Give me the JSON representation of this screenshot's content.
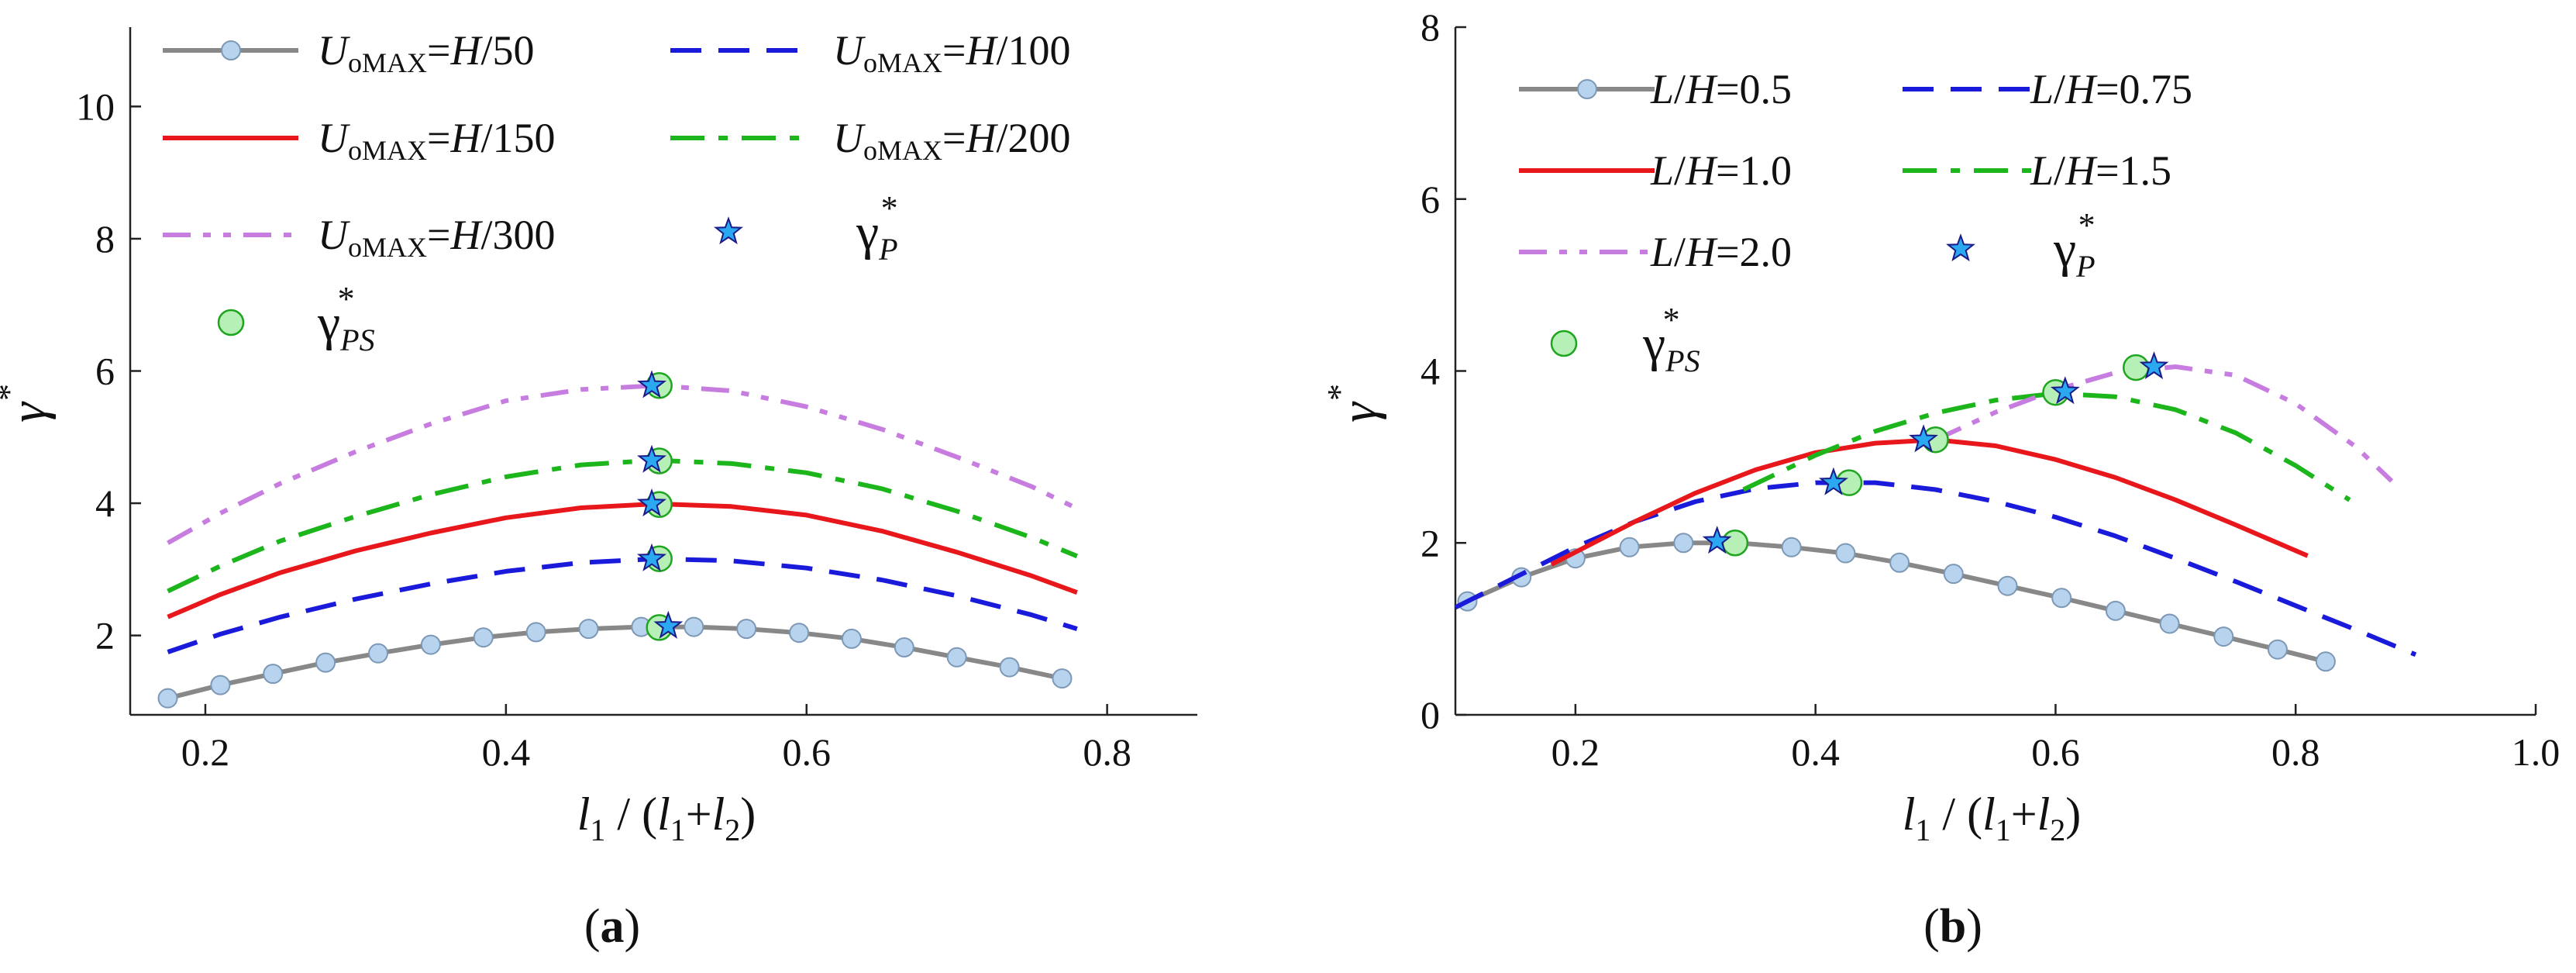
{
  "chart_data": [
    {
      "id": "a",
      "type": "line",
      "panel_label": "(a)",
      "panel_label_parts": [
        "(",
        "a",
        ")"
      ],
      "xlabel": "l1/(l1+l2)",
      "xlabel_parts": [
        "l",
        "1",
        " / (",
        "l",
        "1",
        "+",
        "l",
        "2",
        ")"
      ],
      "ylabel": "γ*",
      "ylabel_parts": [
        "γ",
        "*"
      ],
      "xlim": [
        0.15,
        0.86
      ],
      "ylim": [
        0.8,
        11.2
      ],
      "xticks": [
        0.2,
        0.4,
        0.6,
        0.8
      ],
      "xtick_labels": [
        "0.2",
        "0.4",
        "0.6",
        "0.8"
      ],
      "yticks": [
        2,
        4,
        6,
        8,
        10
      ],
      "ytick_labels": [
        "2",
        "4",
        "6",
        "8",
        "10"
      ],
      "grid": false,
      "legend_position": "top",
      "series": [
        {
          "name": "UoMAX=H/50",
          "legend_parts": [
            "U",
            "oMAX",
            "=",
            "H",
            "/50"
          ],
          "color": "#888888",
          "style": "solid-markers",
          "x": [
            0.175,
            0.21,
            0.245,
            0.28,
            0.315,
            0.35,
            0.385,
            0.42,
            0.455,
            0.49,
            0.525,
            0.56,
            0.595,
            0.63,
            0.665,
            0.7,
            0.735,
            0.77
          ],
          "y": [
            1.05,
            1.25,
            1.42,
            1.59,
            1.73,
            1.86,
            1.97,
            2.05,
            2.1,
            2.13,
            2.13,
            2.1,
            2.04,
            1.95,
            1.82,
            1.67,
            1.52,
            1.35
          ]
        },
        {
          "name": "UoMAX=H/100",
          "legend_parts": [
            "U",
            "oMAX",
            "=",
            "H",
            "/100"
          ],
          "color": "#1a1adb",
          "style": "dashed",
          "x": [
            0.175,
            0.21,
            0.25,
            0.3,
            0.35,
            0.4,
            0.45,
            0.5,
            0.55,
            0.6,
            0.65,
            0.7,
            0.75,
            0.78
          ],
          "y": [
            1.75,
            2.02,
            2.28,
            2.55,
            2.78,
            2.97,
            3.1,
            3.16,
            3.13,
            3.02,
            2.84,
            2.6,
            2.31,
            2.1
          ]
        },
        {
          "name": "UoMAX=H/150",
          "legend_parts": [
            "U",
            "oMAX",
            "=",
            "H",
            "/150"
          ],
          "color": "#e8171c",
          "style": "solid",
          "x": [
            0.175,
            0.21,
            0.25,
            0.3,
            0.35,
            0.4,
            0.45,
            0.5,
            0.55,
            0.6,
            0.65,
            0.7,
            0.75,
            0.78
          ],
          "y": [
            2.28,
            2.62,
            2.95,
            3.28,
            3.55,
            3.78,
            3.93,
            3.99,
            3.95,
            3.82,
            3.58,
            3.26,
            2.9,
            2.65
          ]
        },
        {
          "name": "UoMAX=H/200",
          "legend_parts": [
            "U",
            "oMAX",
            "=",
            "H",
            "/200"
          ],
          "color": "#1cb51c",
          "style": "dashdot",
          "x": [
            0.175,
            0.21,
            0.25,
            0.3,
            0.35,
            0.4,
            0.45,
            0.5,
            0.55,
            0.6,
            0.65,
            0.7,
            0.75,
            0.78
          ],
          "y": [
            2.67,
            3.05,
            3.43,
            3.8,
            4.13,
            4.4,
            4.58,
            4.65,
            4.6,
            4.46,
            4.22,
            3.88,
            3.48,
            3.2
          ]
        },
        {
          "name": "UoMAX=H/300",
          "legend_parts": [
            "U",
            "oMAX",
            "=",
            "H",
            "/300"
          ],
          "color": "#c77de0",
          "style": "dashdotdot",
          "x": [
            0.175,
            0.21,
            0.25,
            0.3,
            0.35,
            0.4,
            0.45,
            0.5,
            0.55,
            0.6,
            0.65,
            0.7,
            0.75,
            0.78
          ],
          "y": [
            3.4,
            3.85,
            4.3,
            4.78,
            5.2,
            5.55,
            5.72,
            5.78,
            5.7,
            5.46,
            5.12,
            4.7,
            4.25,
            3.92
          ]
        }
      ],
      "markers": [
        {
          "name": "γP*",
          "legend_parts": [
            "γ",
            "P",
            "*"
          ],
          "shape": "star",
          "color": "#2aa8f0",
          "x": [
            0.508,
            0.497,
            0.497,
            0.497,
            0.497
          ],
          "y": [
            2.14,
            3.16,
            3.99,
            4.65,
            5.78
          ]
        },
        {
          "name": "γPS*",
          "legend_parts": [
            "γ",
            "PS",
            "*"
          ],
          "shape": "circle",
          "color": "#b6f0b6",
          "x": [
            0.502,
            0.502,
            0.502,
            0.502,
            0.502
          ],
          "y": [
            2.12,
            3.16,
            3.98,
            4.64,
            5.78
          ]
        }
      ]
    },
    {
      "id": "b",
      "type": "line",
      "panel_label": "(b)",
      "panel_label_parts": [
        "(",
        "b",
        ")"
      ],
      "xlabel": "l1/(l1+l2)",
      "xlabel_parts": [
        "l",
        "1",
        " / (",
        "l",
        "1",
        "+",
        "l",
        "2",
        ")"
      ],
      "ylabel": "γ*",
      "ylabel_parts": [
        "γ",
        "*"
      ],
      "xlim": [
        0.1,
        1.0
      ],
      "ylim": [
        0,
        8
      ],
      "xticks": [
        0.2,
        0.4,
        0.6,
        0.8,
        1.0
      ],
      "xtick_labels": [
        "0.2",
        "0.4",
        "0.6",
        "0.8",
        "1.0"
      ],
      "yticks": [
        0,
        2,
        4,
        6,
        8
      ],
      "ytick_labels": [
        "0",
        "2",
        "4",
        "6",
        "8"
      ],
      "grid": false,
      "legend_position": "top",
      "series": [
        {
          "name": "L/H=0.5",
          "legend_parts": [
            "L",
            "/",
            "H",
            "=0.5"
          ],
          "color": "#888888",
          "style": "solid-markers",
          "x": [
            0.11,
            0.155,
            0.2,
            0.245,
            0.29,
            0.335,
            0.38,
            0.425,
            0.47,
            0.515,
            0.56,
            0.605,
            0.65,
            0.695,
            0.74,
            0.785,
            0.825
          ],
          "y": [
            1.32,
            1.6,
            1.82,
            1.95,
            2.0,
            2.0,
            1.95,
            1.88,
            1.77,
            1.64,
            1.5,
            1.36,
            1.21,
            1.06,
            0.91,
            0.76,
            0.62
          ]
        },
        {
          "name": "L/H=0.75",
          "legend_parts": [
            "L",
            "/",
            "H",
            "=0.75"
          ],
          "color": "#1a1adb",
          "style": "dashed",
          "x": [
            0.1,
            0.15,
            0.2,
            0.25,
            0.3,
            0.35,
            0.4,
            0.45,
            0.5,
            0.55,
            0.6,
            0.65,
            0.7,
            0.75,
            0.8,
            0.85,
            0.9
          ],
          "y": [
            1.25,
            1.6,
            1.95,
            2.25,
            2.48,
            2.63,
            2.7,
            2.7,
            2.62,
            2.48,
            2.3,
            2.08,
            1.82,
            1.55,
            1.27,
            0.99,
            0.7
          ]
        },
        {
          "name": "L/H=1.0",
          "legend_parts": [
            "L",
            "/",
            "H",
            "=1.0"
          ],
          "color": "#e8171c",
          "style": "solid",
          "x": [
            0.18,
            0.25,
            0.3,
            0.35,
            0.4,
            0.45,
            0.5,
            0.55,
            0.6,
            0.65,
            0.7,
            0.75,
            0.81
          ],
          "y": [
            1.75,
            2.25,
            2.58,
            2.85,
            3.05,
            3.16,
            3.2,
            3.13,
            2.97,
            2.76,
            2.5,
            2.21,
            1.85
          ]
        },
        {
          "name": "L/H=1.5",
          "legend_parts": [
            "L",
            "/",
            "H",
            "=1.5"
          ],
          "color": "#1cb51c",
          "style": "dashdot",
          "x": [
            0.34,
            0.4,
            0.45,
            0.5,
            0.55,
            0.6,
            0.65,
            0.7,
            0.75,
            0.8,
            0.845
          ],
          "y": [
            2.62,
            3.02,
            3.3,
            3.51,
            3.66,
            3.74,
            3.7,
            3.55,
            3.28,
            2.9,
            2.5
          ]
        },
        {
          "name": "L/H=2.0",
          "legend_parts": [
            "L",
            "/",
            "H",
            "=2.0"
          ],
          "color": "#c77de0",
          "style": "dashdotdot",
          "x": [
            0.5,
            0.55,
            0.6,
            0.65,
            0.7,
            0.75,
            0.8,
            0.85,
            0.88
          ],
          "y": [
            3.2,
            3.52,
            3.78,
            3.98,
            4.05,
            3.95,
            3.62,
            3.12,
            2.72
          ]
        }
      ],
      "markers": [
        {
          "name": "γP*",
          "legend_parts": [
            "γ",
            "P",
            "*"
          ],
          "shape": "star",
          "color": "#2aa8f0",
          "x": [
            0.318,
            0.415,
            0.49,
            0.608,
            0.682
          ],
          "y": [
            2.02,
            2.7,
            3.2,
            3.76,
            4.05
          ]
        },
        {
          "name": "γPS*",
          "legend_parts": [
            "γ",
            "PS",
            "*"
          ],
          "shape": "circle",
          "color": "#b6f0b6",
          "x": [
            0.333,
            0.428,
            0.5,
            0.6,
            0.667
          ],
          "y": [
            2.0,
            2.7,
            3.2,
            3.75,
            4.04
          ]
        }
      ]
    }
  ]
}
